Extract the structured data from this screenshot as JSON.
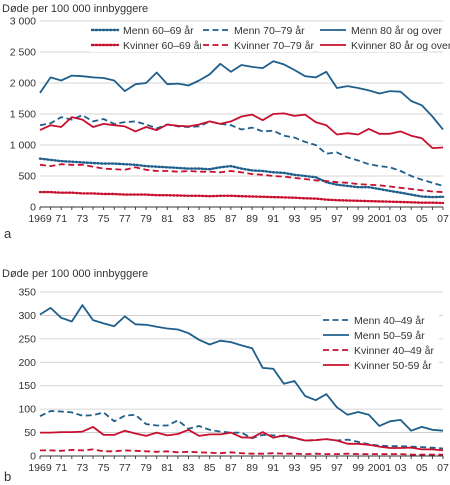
{
  "colors": {
    "dark_blue": "#1f5f8b",
    "red": "#c8102e",
    "grid": "#c8c8c8",
    "text": "#333333"
  },
  "chart_data": [
    {
      "type": "line",
      "panel": "a",
      "ylabel": "Døde per 100 000 innbyggere",
      "ylim": [
        0,
        3000
      ],
      "yticks": [
        0,
        500,
        1000,
        1500,
        2000,
        2500,
        3000
      ],
      "ytick_labels": [
        "0",
        "500",
        "1 000",
        "1 500",
        "2 000",
        "2 500",
        "3 000"
      ],
      "xlim": [
        1969,
        2007
      ],
      "xticks": [
        1969,
        1971,
        1973,
        1975,
        1977,
        1979,
        1981,
        1983,
        1985,
        1987,
        1989,
        1991,
        1993,
        1995,
        1997,
        1999,
        2001,
        2003,
        2005,
        2007
      ],
      "xtick_labels": [
        "1969",
        "71",
        "73",
        "75",
        "77",
        "79",
        "81",
        "83",
        "85",
        "87",
        "89",
        "91",
        "93",
        "95",
        "97",
        "99",
        "2001",
        "03",
        "05",
        "07"
      ],
      "grid": "horizontal",
      "legend_position": "top-right, three columns",
      "x": [
        1969,
        1970,
        1971,
        1972,
        1973,
        1974,
        1975,
        1976,
        1977,
        1978,
        1979,
        1980,
        1981,
        1982,
        1983,
        1984,
        1985,
        1986,
        1987,
        1988,
        1989,
        1990,
        1991,
        1992,
        1993,
        1994,
        1995,
        1996,
        1997,
        1998,
        1999,
        2000,
        2001,
        2002,
        2003,
        2004,
        2005,
        2006,
        2007
      ],
      "series": [
        {
          "name": "Menn 60–69 år",
          "color": "#1f5f8b",
          "style": "dotted",
          "values": [
            780,
            760,
            740,
            730,
            720,
            710,
            700,
            700,
            690,
            680,
            660,
            650,
            640,
            630,
            620,
            620,
            610,
            640,
            660,
            620,
            590,
            580,
            560,
            550,
            520,
            500,
            480,
            400,
            360,
            340,
            320,
            320,
            290,
            260,
            230,
            200,
            170,
            160,
            165
          ]
        },
        {
          "name": "Kvinner 60–69 år",
          "color": "#c8102e",
          "style": "dotted",
          "values": [
            240,
            240,
            230,
            230,
            220,
            220,
            210,
            210,
            200,
            200,
            200,
            190,
            190,
            185,
            180,
            180,
            175,
            180,
            180,
            175,
            170,
            165,
            160,
            155,
            150,
            140,
            135,
            120,
            110,
            105,
            100,
            95,
            90,
            85,
            80,
            75,
            70,
            70,
            65
          ]
        },
        {
          "name": "Menn 70–79 år",
          "color": "#1f5f8b",
          "style": "dashed",
          "values": [
            1320,
            1350,
            1450,
            1410,
            1480,
            1380,
            1420,
            1340,
            1370,
            1380,
            1330,
            1270,
            1330,
            1300,
            1290,
            1300,
            1380,
            1340,
            1320,
            1250,
            1280,
            1220,
            1230,
            1150,
            1120,
            1050,
            1000,
            860,
            880,
            800,
            750,
            690,
            660,
            640,
            580,
            500,
            440,
            390,
            340
          ]
        },
        {
          "name": "Kvinner 70–79 år",
          "color": "#c8102e",
          "style": "dashed",
          "values": [
            680,
            660,
            690,
            680,
            680,
            650,
            620,
            610,
            600,
            640,
            600,
            580,
            580,
            570,
            580,
            570,
            570,
            560,
            580,
            560,
            530,
            520,
            500,
            490,
            470,
            450,
            430,
            420,
            400,
            390,
            370,
            360,
            350,
            330,
            310,
            290,
            270,
            250,
            240
          ]
        },
        {
          "name": "Menn 80 år og over",
          "color": "#1f5f8b",
          "style": "solid",
          "values": [
            1840,
            2090,
            2040,
            2120,
            2110,
            2090,
            2080,
            2040,
            1870,
            1980,
            2000,
            2170,
            1980,
            1990,
            1960,
            2040,
            2140,
            2310,
            2180,
            2290,
            2260,
            2240,
            2350,
            2300,
            2210,
            2110,
            2090,
            2180,
            1920,
            1950,
            1920,
            1880,
            1830,
            1870,
            1860,
            1710,
            1640,
            1460,
            1250
          ]
        },
        {
          "name": "Kvinner 80 år og over",
          "color": "#c8102e",
          "style": "solid",
          "values": [
            1240,
            1320,
            1290,
            1450,
            1410,
            1290,
            1340,
            1320,
            1300,
            1220,
            1290,
            1240,
            1330,
            1310,
            1300,
            1330,
            1380,
            1340,
            1380,
            1460,
            1490,
            1400,
            1500,
            1510,
            1470,
            1490,
            1370,
            1320,
            1170,
            1190,
            1170,
            1260,
            1180,
            1180,
            1220,
            1150,
            1110,
            950,
            960
          ]
        }
      ]
    },
    {
      "type": "line",
      "panel": "b",
      "ylabel": "Døde per 100 000 innbyggere",
      "ylim": [
        0,
        350
      ],
      "yticks": [
        0,
        50,
        100,
        150,
        200,
        250,
        300,
        350
      ],
      "ytick_labels": [
        "0",
        "50",
        "100",
        "150",
        "200",
        "250",
        "300",
        "350"
      ],
      "xlim": [
        1969,
        2007
      ],
      "xticks": [
        1969,
        1971,
        1973,
        1975,
        1977,
        1979,
        1981,
        1983,
        1985,
        1987,
        1989,
        1991,
        1993,
        1995,
        1997,
        1999,
        2001,
        2003,
        2005,
        2007
      ],
      "xtick_labels": [
        "1969",
        "71",
        "73",
        "75",
        "77",
        "79",
        "81",
        "83",
        "85",
        "87",
        "89",
        "91",
        "93",
        "95",
        "97",
        "99",
        "2001",
        "03",
        "05",
        "07"
      ],
      "grid": "horizontal",
      "legend_position": "right, stacked",
      "x": [
        1969,
        1970,
        1971,
        1972,
        1973,
        1974,
        1975,
        1976,
        1977,
        1978,
        1979,
        1980,
        1981,
        1982,
        1983,
        1984,
        1985,
        1986,
        1987,
        1988,
        1989,
        1990,
        1991,
        1992,
        1993,
        1994,
        1995,
        1996,
        1997,
        1998,
        1999,
        2000,
        2001,
        2002,
        2003,
        2004,
        2005,
        2006,
        2007
      ],
      "series": [
        {
          "name": "Menn 40–49 år",
          "color": "#1f5f8b",
          "style": "dashed",
          "values": [
            85,
            96,
            95,
            93,
            86,
            87,
            93,
            74,
            86,
            88,
            68,
            65,
            65,
            76,
            58,
            64,
            56,
            52,
            50,
            50,
            38,
            45,
            44,
            42,
            38,
            33,
            34,
            36,
            33,
            35,
            30,
            25,
            22,
            21,
            21,
            20,
            19,
            18,
            16
          ]
        },
        {
          "name": "Menn 50–59 år",
          "color": "#1f5f8b",
          "style": "solid",
          "values": [
            302,
            316,
            295,
            287,
            322,
            290,
            283,
            277,
            298,
            281,
            280,
            276,
            272,
            270,
            262,
            248,
            238,
            246,
            243,
            236,
            230,
            188,
            186,
            154,
            160,
            128,
            119,
            132,
            104,
            88,
            94,
            88,
            64,
            74,
            77,
            54,
            62,
            56,
            54
          ]
        },
        {
          "name": "Kvinner 40–49 år",
          "color": "#c8102e",
          "style": "dashed",
          "values": [
            12,
            12,
            11,
            13,
            12,
            14,
            10,
            10,
            12,
            11,
            10,
            9,
            10,
            8,
            9,
            8,
            7,
            6,
            8,
            6,
            5,
            5,
            6,
            5,
            5,
            4,
            5,
            4,
            4,
            5,
            4,
            4,
            4,
            4,
            4,
            3,
            3,
            3,
            3
          ]
        },
        {
          "name": "Kvinner 50-59 år",
          "color": "#c8102e",
          "style": "solid",
          "values": [
            50,
            50,
            51,
            51,
            52,
            62,
            45,
            45,
            54,
            48,
            43,
            50,
            44,
            47,
            56,
            43,
            46,
            46,
            50,
            40,
            39,
            51,
            39,
            44,
            39,
            33,
            34,
            36,
            33,
            26,
            26,
            24,
            20,
            17,
            17,
            18,
            14,
            14,
            12
          ]
        }
      ]
    }
  ]
}
